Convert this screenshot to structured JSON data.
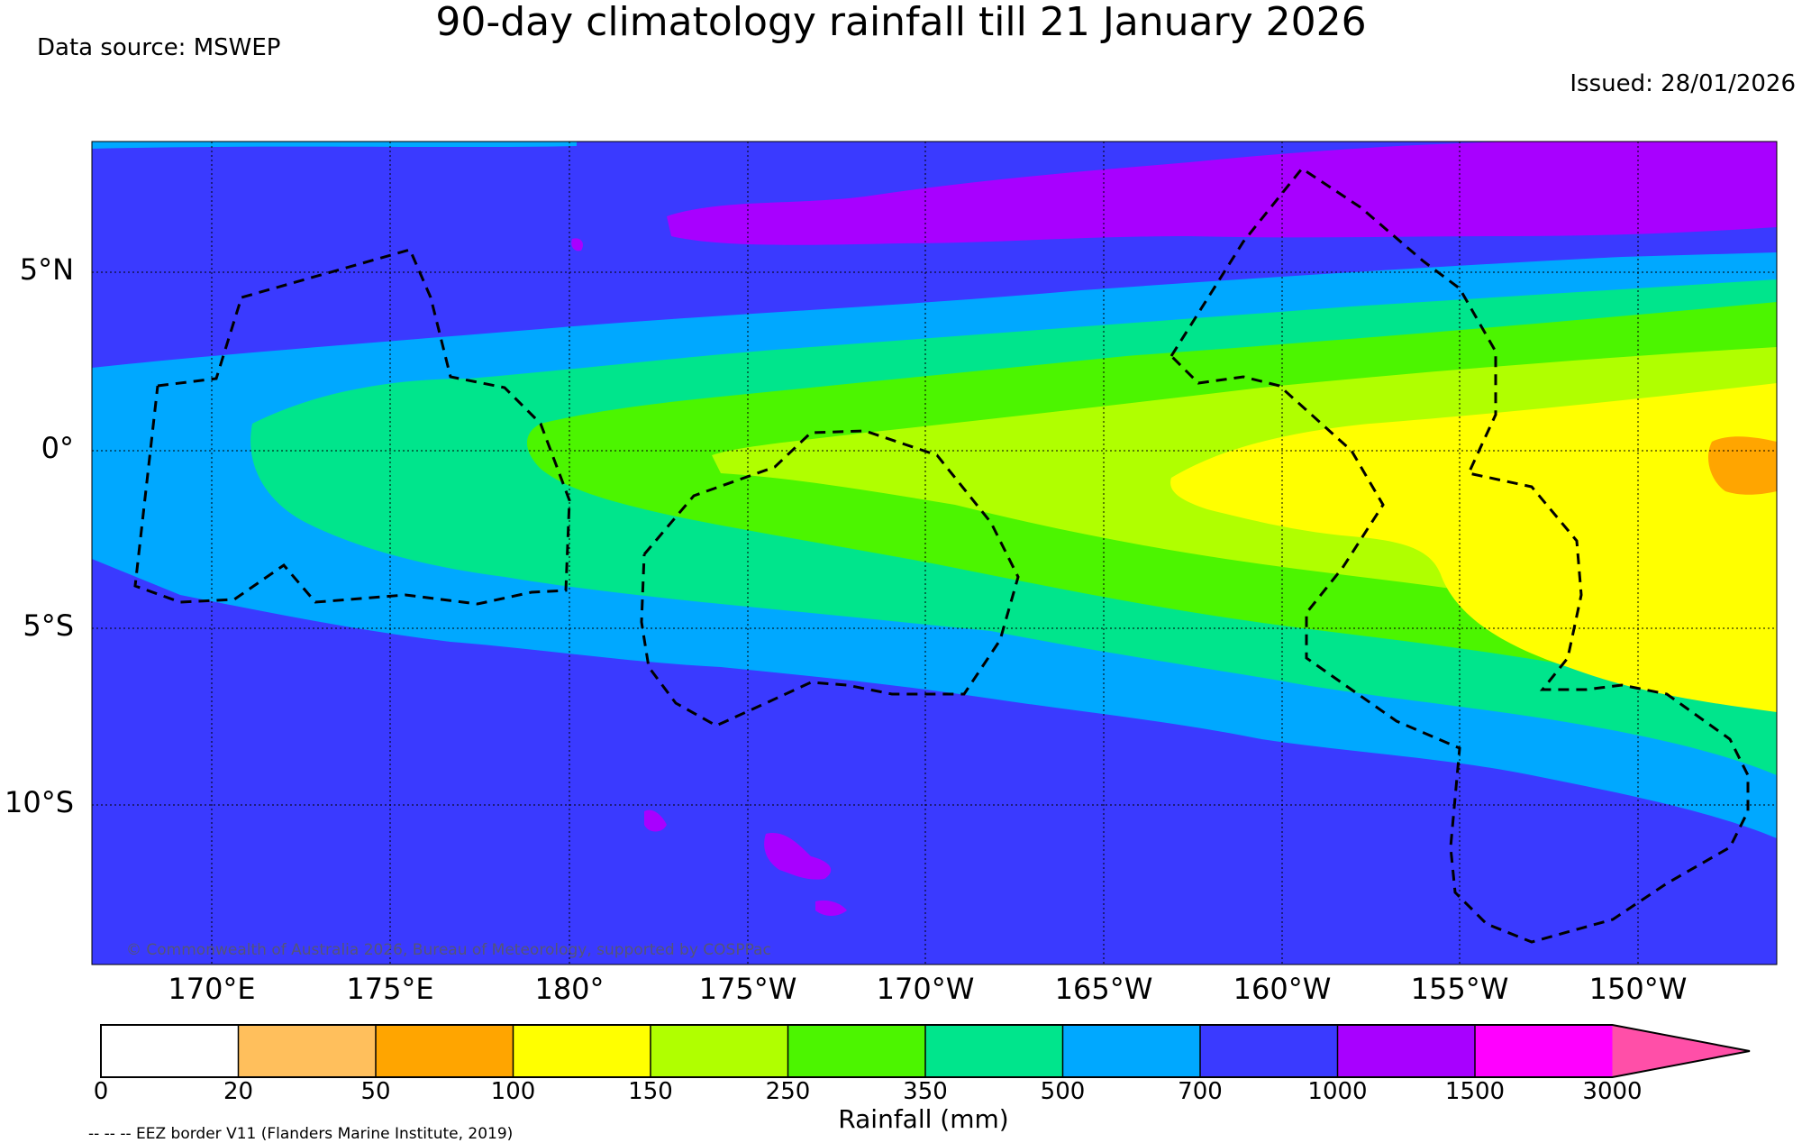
{
  "title": "90-day climatology rainfall till 21 January 2026",
  "data_source": "Data source: MSWEP",
  "issued": "Issued: 28/01/2026",
  "copyright": "© Commonwealth of Australia 2026, Bureau of Meteorology, supported by COSPPac",
  "eez_note": "-- -- -- EEZ border V11 (Flanders Marine Institute, 2019)",
  "lat_labels": [
    "5°N",
    "0°",
    "5°S",
    "10°S"
  ],
  "lon_labels": [
    "170°E",
    "175°E",
    "180°",
    "175°W",
    "170°W",
    "165°W",
    "160°W",
    "155°W",
    "150°W"
  ],
  "colorbar": {
    "label": "Rainfall (mm)",
    "ticks": [
      "0",
      "20",
      "50",
      "100",
      "150",
      "250",
      "350",
      "500",
      "700",
      "1000",
      "1500",
      "3000"
    ],
    "colors": [
      "#ffffff",
      "#ffbf5c",
      "#ffa500",
      "#ffff00",
      "#b0ff00",
      "#4cf500",
      "#00e58c",
      "#00a8ff",
      "#3a3aff",
      "#a800ff",
      "#ff00ff",
      "#ff4fa8"
    ]
  }
}
